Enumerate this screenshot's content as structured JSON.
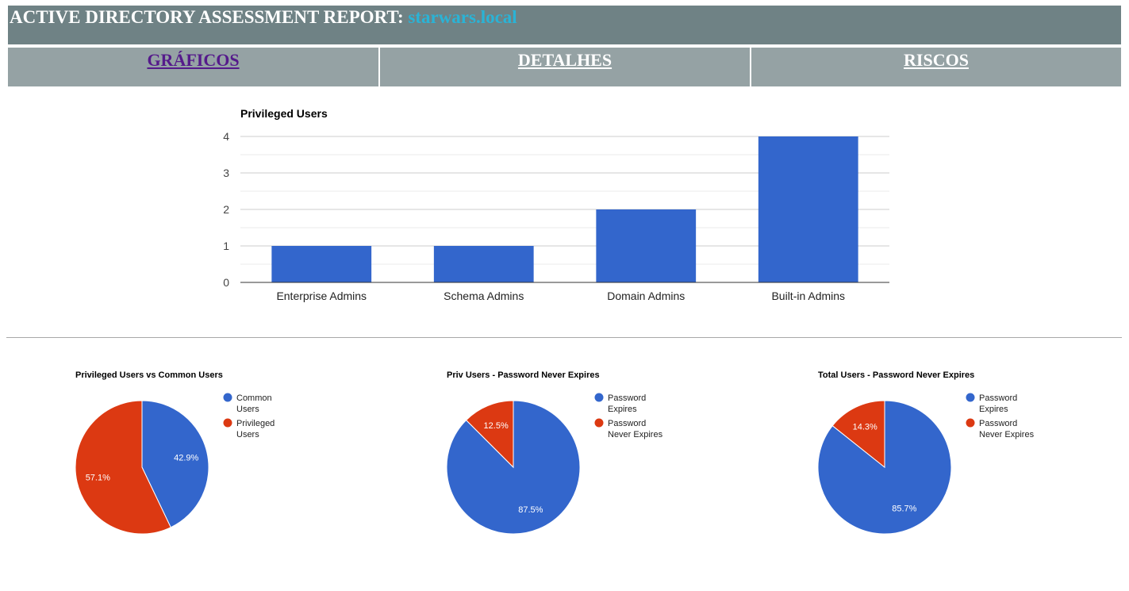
{
  "header": {
    "title": "ACTIVE DIRECTORY ASSESSMENT REPORT:",
    "domain": "starwars.local"
  },
  "nav": {
    "tabs": [
      {
        "label": "GRÁFICOS",
        "visited": true
      },
      {
        "label": "DETALHES",
        "visited": false
      },
      {
        "label": "RISCOS",
        "visited": false
      }
    ]
  },
  "colors": {
    "header_bg": "#6f8285",
    "nav_bg": "#95a2a4",
    "domain_text": "#2ab3d6",
    "blue": "#3366cc",
    "red": "#dc3912"
  },
  "chart_data": [
    {
      "type": "bar",
      "title": "Privileged Users",
      "categories": [
        "Enterprise Admins",
        "Schema Admins",
        "Domain Admins",
        "Built-in Admins"
      ],
      "values": [
        1,
        1,
        2,
        4
      ],
      "ylim": [
        0,
        4
      ],
      "yticks": [
        "0",
        "1",
        "2",
        "3",
        "4"
      ],
      "xlabel": "",
      "ylabel": "",
      "grid": true
    },
    {
      "type": "pie",
      "title": "Privileged Users vs Common Users",
      "labels": [
        "Common Users",
        "Privileged Users"
      ],
      "legend_lines": [
        [
          "Common",
          "Users"
        ],
        [
          "Privileged",
          "Users"
        ]
      ],
      "values": [
        42.9,
        57.1
      ],
      "slice_labels": [
        "42.9%",
        "57.1%"
      ],
      "legend": "right"
    },
    {
      "type": "pie",
      "title": "Priv Users - Password Never Expires",
      "labels": [
        "Password Expires",
        "Password Never Expires"
      ],
      "legend_lines": [
        [
          "Password",
          "Expires"
        ],
        [
          "Password",
          "Never Expires"
        ]
      ],
      "values": [
        87.5,
        12.5
      ],
      "slice_labels": [
        "87.5%",
        "12.5%"
      ],
      "legend": "right"
    },
    {
      "type": "pie",
      "title": "Total Users - Password Never Expires",
      "labels": [
        "Password Expires",
        "Password Never Expires"
      ],
      "legend_lines": [
        [
          "Password",
          "Expires"
        ],
        [
          "Password",
          "Never Expires"
        ]
      ],
      "values": [
        85.7,
        14.3
      ],
      "slice_labels": [
        "85.7%",
        "14.3%"
      ],
      "legend": "right"
    }
  ]
}
